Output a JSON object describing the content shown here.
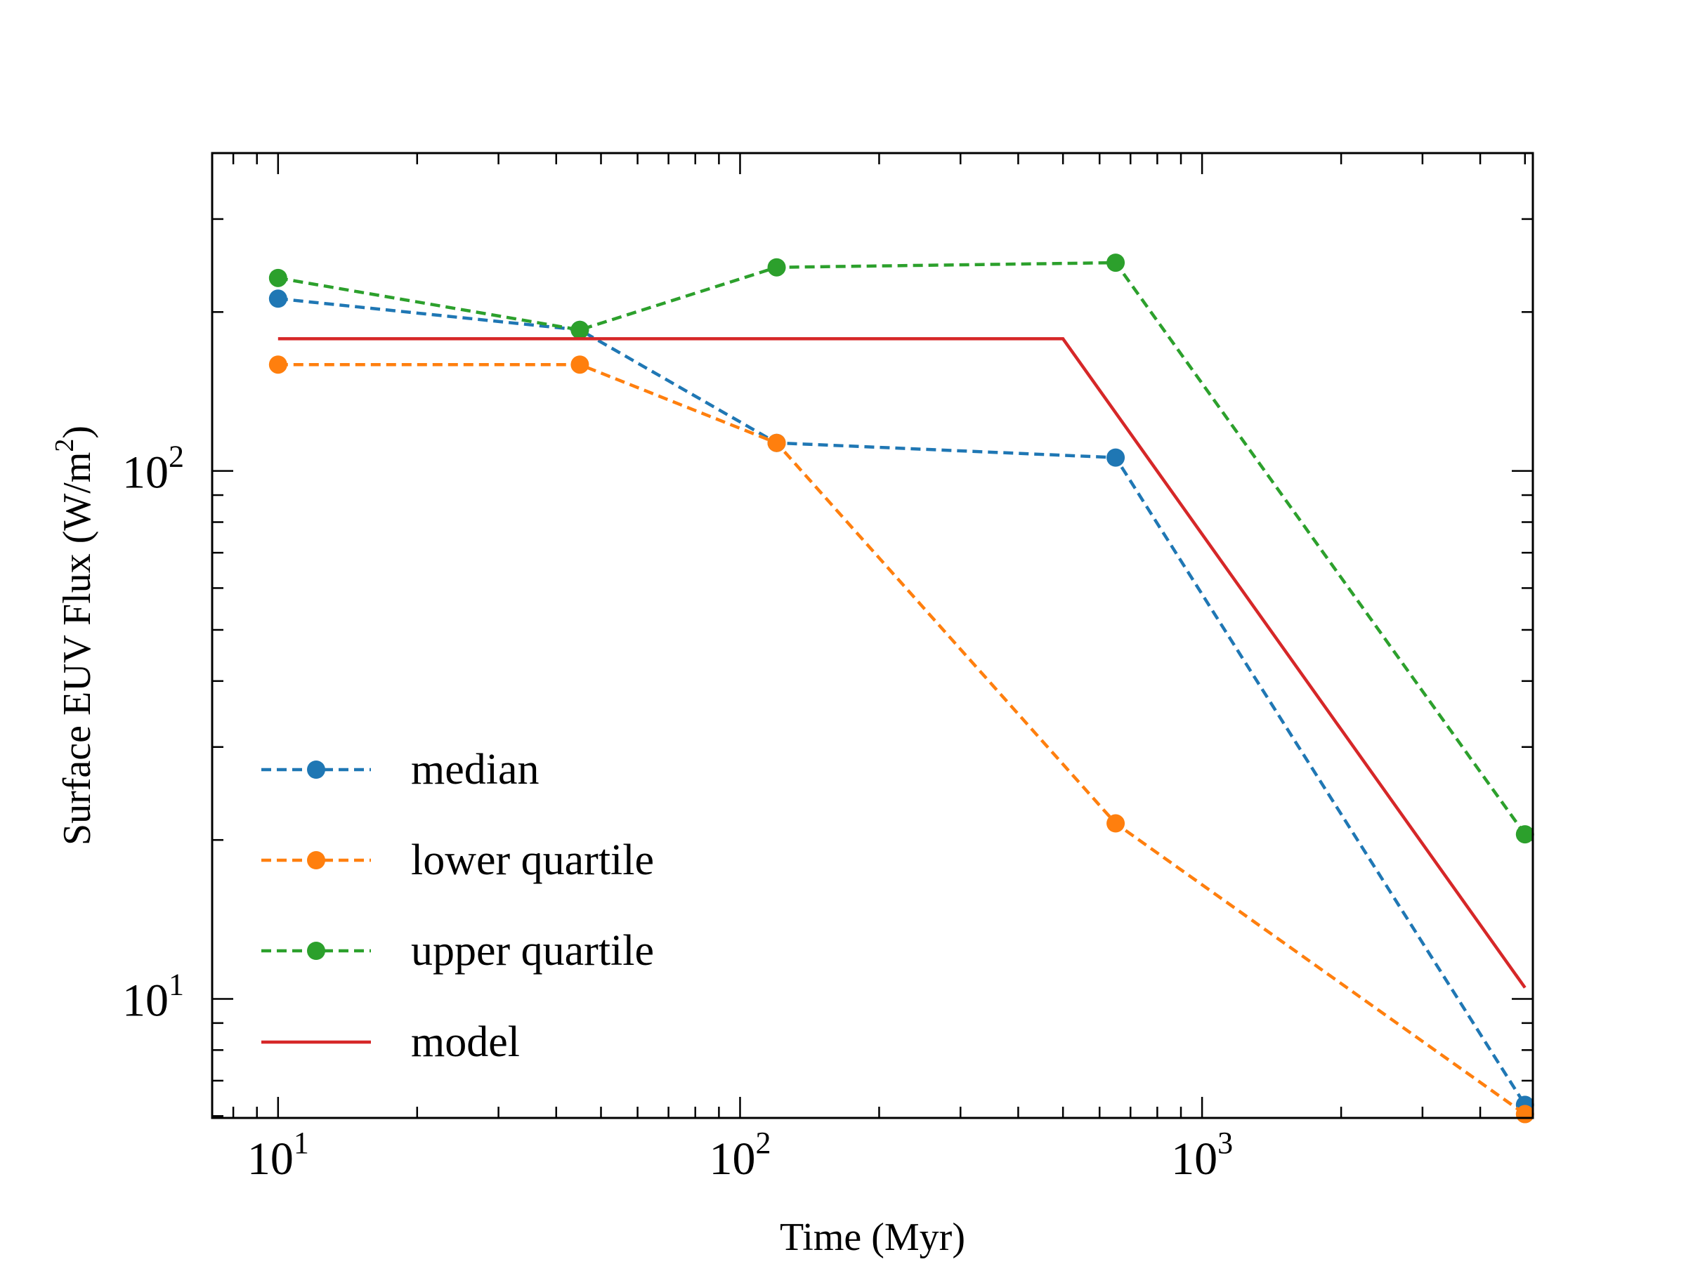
{
  "chart_data": {
    "type": "line",
    "xlabel": "Time (Myr)",
    "ylabel_main": "Surface EUV Flux (W/m",
    "ylabel_sup": "2",
    "ylabel_close": ")",
    "xscale": "log",
    "yscale": "log",
    "xlim": [
      7.2,
      5200
    ],
    "ylim": [
      5.95,
      400
    ],
    "grid": false,
    "legend_position": "lower-left",
    "x_ticks": [
      {
        "value": 10,
        "base": "10",
        "exp": "1"
      },
      {
        "value": 100,
        "base": "10",
        "exp": "2"
      },
      {
        "value": 1000,
        "base": "10",
        "exp": "3"
      }
    ],
    "y_ticks": [
      {
        "value": 10,
        "base": "10",
        "exp": "1"
      },
      {
        "value": 100,
        "base": "10",
        "exp": "2"
      }
    ],
    "series": [
      {
        "name": "median",
        "color": "#1f77b4",
        "style": "dashed",
        "marker": "circle",
        "x": [
          10,
          45,
          120,
          650,
          5000
        ],
        "y": [
          212,
          185,
          113,
          106,
          6.3
        ]
      },
      {
        "name": "lower quartile",
        "color": "#ff7f0e",
        "style": "dashed",
        "marker": "circle",
        "x": [
          10,
          45,
          120,
          650,
          5000
        ],
        "y": [
          159,
          159,
          113,
          21.5,
          6.05
        ]
      },
      {
        "name": "upper quartile",
        "color": "#2ca02c",
        "style": "dashed",
        "marker": "circle",
        "x": [
          10,
          45,
          120,
          650,
          5000
        ],
        "y": [
          232,
          185,
          243,
          248,
          20.5
        ]
      },
      {
        "name": "model",
        "color": "#d62728",
        "style": "solid",
        "marker": "none",
        "x": [
          10,
          500,
          5000
        ],
        "y": [
          178,
          178,
          10.5
        ]
      }
    ]
  }
}
